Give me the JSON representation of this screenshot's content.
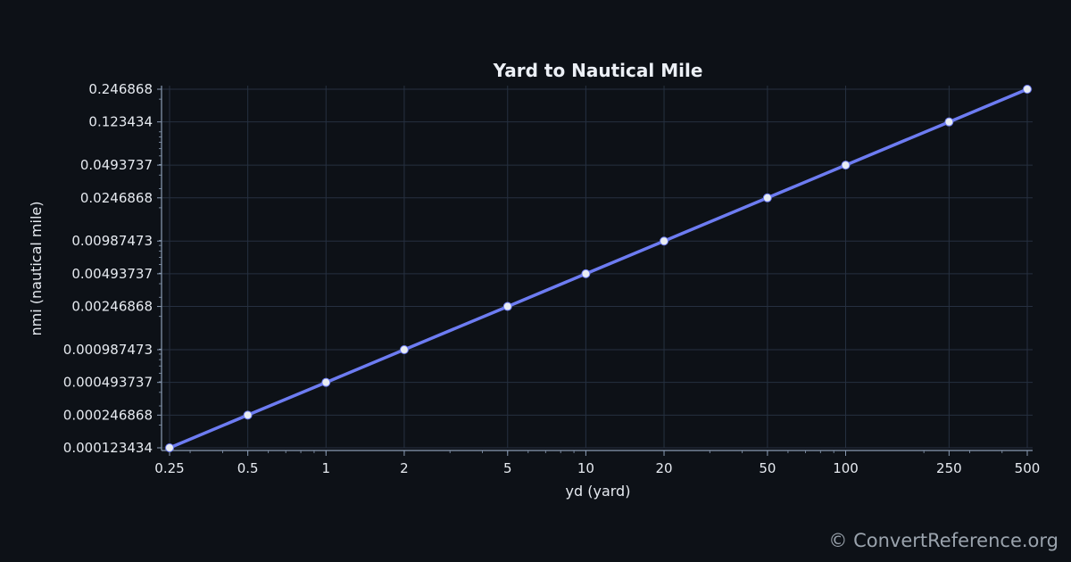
{
  "colors": {
    "background": "#0d1117",
    "line": "#6d7cf2",
    "marker": "#e8ecf2",
    "grid": "#263040",
    "axis": "#8a9bb3",
    "text": "#e6eaf0"
  },
  "chart_data": {
    "type": "line",
    "title": "Yard to Nautical Mile",
    "xlabel": "yd (yard)",
    "ylabel": "nmi (nautical mile)",
    "xscale": "log",
    "yscale": "log",
    "grid": true,
    "x_ticks": [
      "0.25",
      "0.5",
      "1",
      "2",
      "5",
      "10",
      "20",
      "50",
      "100",
      "250",
      "500"
    ],
    "y_ticks": [
      "0.000123434",
      "0.000246868",
      "0.000493737",
      "0.000987473",
      "0.00246868",
      "0.00493737",
      "0.00987473",
      "0.0246868",
      "0.0493737",
      "0.123434",
      "0.246868"
    ],
    "series": [
      {
        "x": [
          0.25,
          0.5,
          1,
          2,
          5,
          10,
          20,
          50,
          100,
          250,
          500
        ],
        "y": [
          0.000123434,
          0.000246868,
          0.000493737,
          0.000987473,
          0.00246868,
          0.00493737,
          0.00987473,
          0.0246868,
          0.0493737,
          0.123434,
          0.246868
        ]
      }
    ]
  },
  "footer": {
    "credit": "© ConvertReference.org"
  }
}
